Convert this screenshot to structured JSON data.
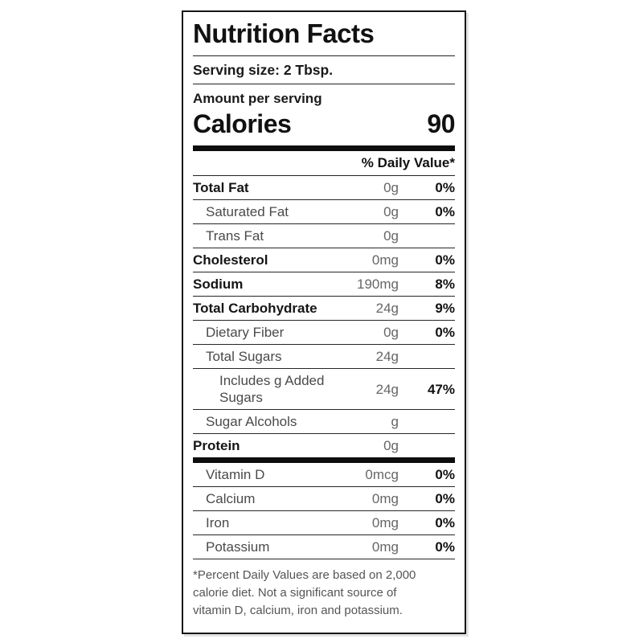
{
  "label": {
    "title": "Nutrition Facts",
    "serving_size": "Serving size: 2 Tbsp.",
    "amount_per_serving": "Amount per serving",
    "calories_label": "Calories",
    "calories_value": "90",
    "daily_value_header": "% Daily Value*",
    "rows": {
      "main": [
        {
          "label": "Total Fat",
          "value": "0g",
          "dv": "0%",
          "emphasis": "bold"
        },
        {
          "label": "Saturated Fat",
          "value": "0g",
          "dv": "0%",
          "emphasis": "sub"
        },
        {
          "label": "Trans Fat",
          "value": "0g",
          "dv": "",
          "emphasis": "sub"
        },
        {
          "label": "Cholesterol",
          "value": "0mg",
          "dv": "0%",
          "emphasis": "bold"
        },
        {
          "label": "Sodium",
          "value": "190mg",
          "dv": "8%",
          "emphasis": "bold"
        },
        {
          "label": "Total Carbohydrate",
          "value": "24g",
          "dv": "9%",
          "emphasis": "bold"
        },
        {
          "label": "Dietary Fiber",
          "value": "0g",
          "dv": "0%",
          "emphasis": "sub"
        },
        {
          "label": "Total Sugars",
          "value": "24g",
          "dv": "",
          "emphasis": "sub"
        },
        {
          "label": "Includes g Added Sugars",
          "value": "24g",
          "dv": "47%",
          "emphasis": "sub2"
        },
        {
          "label": "Sugar Alcohols",
          "value": "g",
          "dv": "",
          "emphasis": "sub"
        },
        {
          "label": "Protein",
          "value": "0g",
          "dv": "",
          "emphasis": "bold"
        }
      ],
      "vitamins": [
        {
          "label": "Vitamin D",
          "value": "0mcg",
          "dv": "0%",
          "emphasis": "sub"
        },
        {
          "label": "Calcium",
          "value": "0mg",
          "dv": "0%",
          "emphasis": "sub"
        },
        {
          "label": "Iron",
          "value": "0mg",
          "dv": "0%",
          "emphasis": "sub"
        },
        {
          "label": "Potassium",
          "value": "0mg",
          "dv": "0%",
          "emphasis": "sub"
        }
      ]
    },
    "footnote": "*Percent Daily Values are based on 2,000 calorie diet. Not a significant source of vitamin D, calcium, iron and potassium."
  },
  "colors": {
    "text_primary": "#111111",
    "text_sub_label": "#4a4a4a",
    "value_gray": "#666666",
    "footnote_gray": "#555555",
    "divider": "#222222",
    "thick_bar": "#0d0d0d"
  }
}
